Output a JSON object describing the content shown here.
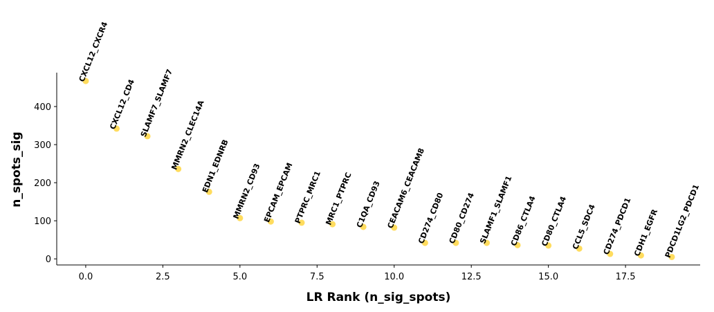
{
  "chart_data": {
    "type": "scatter",
    "x_label": "LR Rank (n_sig_spots)",
    "y_label": "n_spots_sig",
    "x": [
      0,
      1,
      2,
      3,
      4,
      5,
      6,
      7,
      8,
      9,
      10,
      11,
      12,
      13,
      14,
      15,
      16,
      17,
      18,
      19
    ],
    "values": [
      467,
      342,
      322,
      236,
      176,
      107,
      98,
      95,
      91,
      84,
      82,
      42,
      42,
      42,
      36,
      35,
      27,
      13,
      9,
      5
    ],
    "point_labels": [
      "CXCL12_CXCR4",
      "CXCL12_CD4",
      "SLAMF7_SLAMF7",
      "MMRN2_CLEC14A",
      "EDN1_EDNRB",
      "MMRN2_CD93",
      "EPCAM_EPCAM",
      "PTPRC_MRC1",
      "MRC1_PTPRC",
      "C1QA_CD93",
      "CEACAM6_CEACAM8",
      "CD274_CD80",
      "CD80_CD274",
      "SLAMF1_SLAMF1",
      "CD86_CTLA4",
      "CD80_CTLA4",
      "CCL5_SDC4",
      "CD274_PDCD1",
      "CDH1_EGFR",
      "PDCD1LG2_PDCD1"
    ],
    "color": "#ffdc5e",
    "xlim": [
      -0.94,
      19.92
    ],
    "ylim": [
      -16,
      489
    ],
    "xticks": [
      {
        "value": 0,
        "label": "0.0"
      },
      {
        "value": 2.5,
        "label": "2.5"
      },
      {
        "value": 5,
        "label": "5.0"
      },
      {
        "value": 7.5,
        "label": "7.5"
      },
      {
        "value": 10,
        "label": "10.0"
      },
      {
        "value": 12.5,
        "label": "12.5"
      },
      {
        "value": 15,
        "label": "15.0"
      },
      {
        "value": 17.5,
        "label": "17.5"
      }
    ],
    "yticks": [
      0,
      100,
      200,
      300,
      400
    ]
  }
}
